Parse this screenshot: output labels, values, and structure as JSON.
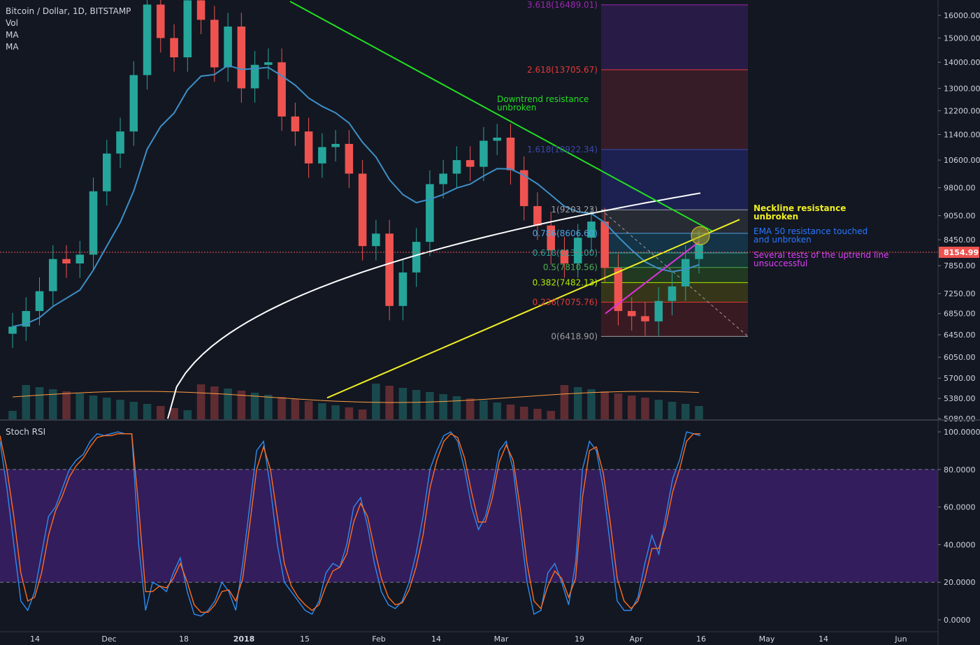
{
  "legend": {
    "symbol": "Bitcoin / Dollar, 1D, BITSTAMP",
    "vol": "Vol",
    "ma1": "MA",
    "ma2": "MA"
  },
  "stoch_label": "Stoch RSI",
  "colors": {
    "background": "#131722",
    "up": "#26a69a",
    "down": "#ef5350",
    "ema50": "#3d8fc6",
    "ma200": "#ffffff",
    "downtrend": "#22dd22",
    "neckline": "#eeee22",
    "uptrend": "#dd33dd",
    "stoch_k": "#2d8cf0",
    "stoch_d": "#ff6d1f",
    "stoch_band": "#3b1f66",
    "current_price": "#ef5350"
  },
  "chart_data": [
    {
      "type": "candlestick",
      "title": "Bitcoin / Dollar, 1D, BITSTAMP",
      "y_scale": "log",
      "y_ticks": [
        "16000.00",
        "15000.00",
        "14000.00",
        "13000.00",
        "12200.00",
        "11400.00",
        "10600.00",
        "9800.00",
        "9050.00",
        "8450.00",
        "7850.00",
        "7250.00",
        "6850.00",
        "6450.00",
        "6050.00",
        "5700.00",
        "5380.00",
        "5080.00"
      ],
      "x_ticks": [
        "14",
        "Dec",
        "18",
        "2018",
        "15",
        "Feb",
        "14",
        "Mar",
        "19",
        "Apr",
        "16",
        "May",
        "14",
        "Jun"
      ],
      "current_price": "8154.99",
      "candles_approx_close": [
        6600,
        6900,
        7300,
        8000,
        7900,
        8100,
        9700,
        10800,
        11500,
        13500,
        16500,
        15000,
        14200,
        16700,
        15800,
        13800,
        15500,
        13000,
        13900,
        14000,
        12000,
        11500,
        10500,
        11000,
        11100,
        10200,
        8300,
        8600,
        7000,
        7700,
        8400,
        9900,
        10200,
        10600,
        10400,
        11200,
        11300,
        10300,
        9300,
        8800,
        8200,
        7900,
        8500,
        8900,
        7800,
        6900,
        6800,
        6700,
        7100,
        7400,
        8000,
        8350
      ],
      "fib_levels": [
        {
          "ratio": "3.618",
          "price": "16489.01",
          "label": "3.618(16489.01)",
          "color": "#9c27b0"
        },
        {
          "ratio": "2.618",
          "price": "13705.67",
          "label": "2.618(13705.67)",
          "color": "#e53935"
        },
        {
          "ratio": "1.618",
          "price": "10922.34",
          "label": "1.618(10922.34)",
          "color": "#3949ab"
        },
        {
          "ratio": "1",
          "price": "9203.23",
          "label": "1(9203.23)",
          "color": "#9e9e9e"
        },
        {
          "ratio": "0.786",
          "price": "8606.60",
          "label": "0.786(8606.60)",
          "color": "#4fa3e0"
        },
        {
          "ratio": "0.618",
          "price": "8139.00",
          "label": "0.618(8139.00)",
          "color": "#26a69a"
        },
        {
          "ratio": "0.5",
          "price": "7810.56",
          "label": "0.5(7810.56)",
          "color": "#4caf50"
        },
        {
          "ratio": "0.382",
          "price": "7482.13",
          "label": "0.382(7482.13)",
          "color": "#aeea00"
        },
        {
          "ratio": "0.236",
          "price": "7075.76",
          "label": "0.236(7075.76)",
          "color": "#e53935"
        },
        {
          "ratio": "0",
          "price": "6418.90",
          "label": "0(6418.90)",
          "color": "#9e9e9e"
        }
      ],
      "annotations": [
        {
          "line1": "Downtrend resistance",
          "line2": "unbroken",
          "color": "#22dd22"
        },
        {
          "line1": "Neckline resistance",
          "line2": "unbroken",
          "color": "#eeee22"
        },
        {
          "line1": "EMA 50 resistance touched",
          "line2": "and unbroken",
          "color": "#2979ff"
        },
        {
          "line1": "Several tests of the uptrend line",
          "line2": "unsuccessful",
          "color": "#e040fb"
        }
      ]
    },
    {
      "type": "line",
      "title": "Stoch RSI",
      "y_ticks": [
        "100.0000",
        "80.0000",
        "60.0000",
        "40.0000",
        "20.0000",
        "0.0000"
      ],
      "ylim": [
        0,
        100
      ],
      "upper_band": 80,
      "lower_band": 20,
      "series": [
        {
          "values": [
            95,
            70,
            40,
            10,
            5,
            15,
            35,
            55,
            60,
            70,
            80,
            85,
            88,
            95,
            99,
            98,
            99,
            100,
            99,
            99,
            40,
            5,
            20,
            18,
            15,
            25,
            33,
            15,
            3,
            2,
            5,
            10,
            20,
            15,
            5,
            30,
            60,
            90,
            95,
            70,
            40,
            20,
            15,
            10,
            5,
            3,
            10,
            25,
            30,
            28,
            40,
            60,
            65,
            50,
            30,
            15,
            8,
            6,
            10,
            20,
            35,
            55,
            80,
            90,
            98,
            100,
            95,
            80,
            60,
            48,
            55,
            70,
            90,
            95,
            80,
            50,
            20,
            3,
            5,
            25,
            30,
            20,
            8,
            30,
            80,
            95,
            90,
            70,
            40,
            10,
            5,
            5,
            12,
            30,
            45,
            35,
            55,
            75,
            85,
            100,
            99,
            98
          ]
        },
        {
          "values": [
            98,
            80,
            55,
            25,
            10,
            12,
            25,
            45,
            58,
            66,
            76,
            82,
            86,
            92,
            97,
            98,
            98,
            99,
            99,
            99,
            60,
            15,
            15,
            18,
            17,
            22,
            30,
            20,
            8,
            4,
            4,
            8,
            15,
            16,
            10,
            22,
            50,
            80,
            92,
            80,
            55,
            30,
            18,
            12,
            8,
            5,
            8,
            18,
            26,
            28,
            35,
            52,
            62,
            55,
            38,
            22,
            12,
            8,
            9,
            16,
            28,
            45,
            70,
            85,
            95,
            99,
            97,
            86,
            68,
            52,
            52,
            65,
            84,
            93,
            85,
            60,
            30,
            10,
            6,
            18,
            26,
            22,
            12,
            22,
            65,
            90,
            92,
            78,
            52,
            22,
            10,
            6,
            10,
            22,
            38,
            38,
            50,
            68,
            80,
            95,
            99,
            99
          ]
        }
      ]
    }
  ]
}
